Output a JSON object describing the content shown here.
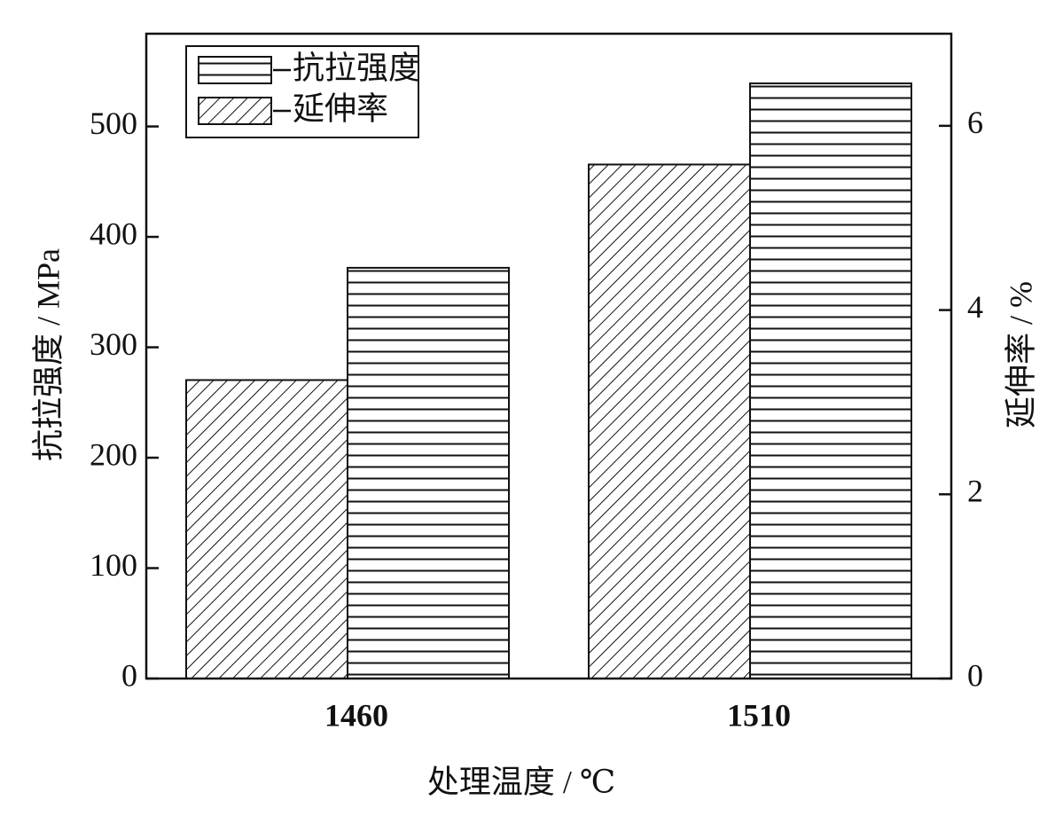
{
  "chart_data": {
    "type": "bar",
    "xlabel": "处理温度 / ℃",
    "ylabel": "抗拉强度 / MPa",
    "y2label": "延伸率 / %",
    "categories": [
      "1460",
      "1510"
    ],
    "series": [
      {
        "name": "抗拉强度",
        "color": "#111111",
        "values": [
          372,
          539
        ]
      },
      {
        "name": "延伸率",
        "color": "#111111",
        "axis": "y2",
        "values": [
          3.24,
          5.58
        ]
      }
    ],
    "ylim": [
      0,
      584
    ],
    "yticks": [
      0,
      100,
      200,
      300,
      400,
      500
    ],
    "y2lim": [
      0,
      7
    ],
    "y2ticks": [
      0,
      2,
      4,
      6
    ],
    "legend": "upper left"
  }
}
